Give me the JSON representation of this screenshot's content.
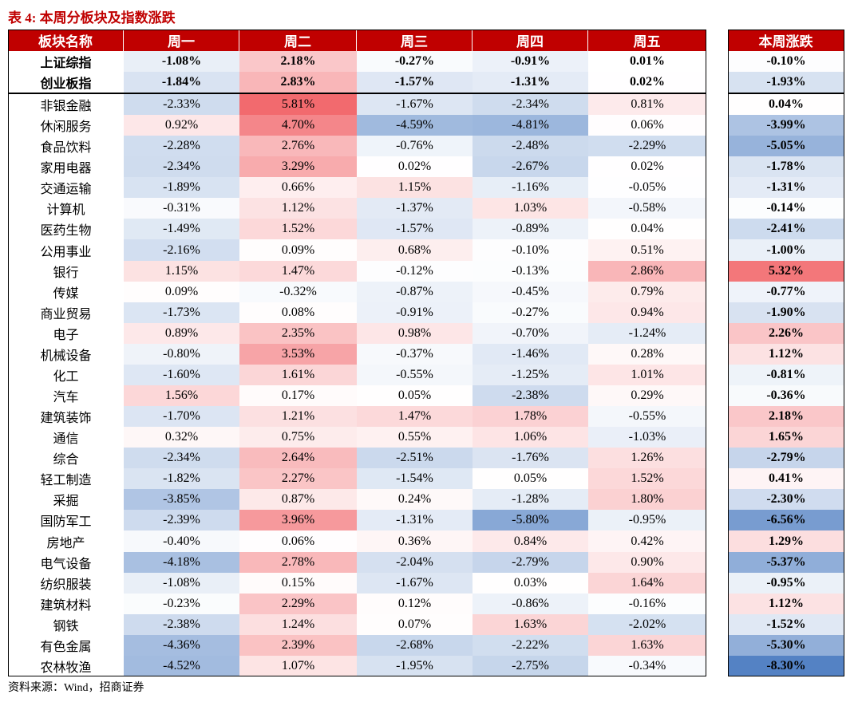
{
  "header": {
    "title": "表 4: 本周分板块及指数涨跌"
  },
  "table": {
    "columns": [
      "板块名称",
      "周一",
      "周二",
      "周三",
      "周四",
      "周五",
      "本周涨跌"
    ],
    "index_rows": [
      [
        "上证综指",
        "-1.08%",
        "2.18%",
        "-0.27%",
        "-0.91%",
        "0.01%",
        "-0.10%"
      ],
      [
        "创业板指",
        "-1.84%",
        "2.83%",
        "-1.57%",
        "-1.31%",
        "0.02%",
        "-1.93%"
      ]
    ],
    "rows": [
      [
        "非银金融",
        "-2.33%",
        "5.81%",
        "-1.67%",
        "-2.34%",
        "0.81%",
        "0.04%"
      ],
      [
        "休闲服务",
        "0.92%",
        "4.70%",
        "-4.59%",
        "-4.81%",
        "0.06%",
        "-3.99%"
      ],
      [
        "食品饮料",
        "-2.28%",
        "2.76%",
        "-0.76%",
        "-2.48%",
        "-2.29%",
        "-5.05%"
      ],
      [
        "家用电器",
        "-2.34%",
        "3.29%",
        "0.02%",
        "-2.67%",
        "0.02%",
        "-1.78%"
      ],
      [
        "交通运输",
        "-1.89%",
        "0.66%",
        "1.15%",
        "-1.16%",
        "-0.05%",
        "-1.31%"
      ],
      [
        "计算机",
        "-0.31%",
        "1.12%",
        "-1.37%",
        "1.03%",
        "-0.58%",
        "-0.14%"
      ],
      [
        "医药生物",
        "-1.49%",
        "1.52%",
        "-1.57%",
        "-0.89%",
        "0.04%",
        "-2.41%"
      ],
      [
        "公用事业",
        "-2.16%",
        "0.09%",
        "0.68%",
        "-0.10%",
        "0.51%",
        "-1.00%"
      ],
      [
        "银行",
        "1.15%",
        "1.47%",
        "-0.12%",
        "-0.13%",
        "2.86%",
        "5.32%"
      ],
      [
        "传媒",
        "0.09%",
        "-0.32%",
        "-0.87%",
        "-0.45%",
        "0.79%",
        "-0.77%"
      ],
      [
        "商业贸易",
        "-1.73%",
        "0.08%",
        "-0.91%",
        "-0.27%",
        "0.94%",
        "-1.90%"
      ],
      [
        "电子",
        "0.89%",
        "2.35%",
        "0.98%",
        "-0.70%",
        "-1.24%",
        "2.26%"
      ],
      [
        "机械设备",
        "-0.80%",
        "3.53%",
        "-0.37%",
        "-1.46%",
        "0.28%",
        "1.12%"
      ],
      [
        "化工",
        "-1.60%",
        "1.61%",
        "-0.55%",
        "-1.25%",
        "1.01%",
        "-0.81%"
      ],
      [
        "汽车",
        "1.56%",
        "0.17%",
        "0.05%",
        "-2.38%",
        "0.29%",
        "-0.36%"
      ],
      [
        "建筑装饰",
        "-1.70%",
        "1.21%",
        "1.47%",
        "1.78%",
        "-0.55%",
        "2.18%"
      ],
      [
        "通信",
        "0.32%",
        "0.75%",
        "0.55%",
        "1.06%",
        "-1.03%",
        "1.65%"
      ],
      [
        "综合",
        "-2.34%",
        "2.64%",
        "-2.51%",
        "-1.76%",
        "1.26%",
        "-2.79%"
      ],
      [
        "轻工制造",
        "-1.82%",
        "2.27%",
        "-1.54%",
        "0.05%",
        "1.52%",
        "0.41%"
      ],
      [
        "采掘",
        "-3.85%",
        "0.87%",
        "0.24%",
        "-1.28%",
        "1.80%",
        "-2.30%"
      ],
      [
        "国防军工",
        "-2.39%",
        "3.96%",
        "-1.31%",
        "-5.80%",
        "-0.95%",
        "-6.56%"
      ],
      [
        "房地产",
        "-0.40%",
        "0.06%",
        "0.36%",
        "0.84%",
        "0.42%",
        "1.29%"
      ],
      [
        "电气设备",
        "-4.18%",
        "2.78%",
        "-2.04%",
        "-2.79%",
        "0.90%",
        "-5.37%"
      ],
      [
        "纺织服装",
        "-1.08%",
        "0.15%",
        "-1.67%",
        "0.03%",
        "1.64%",
        "-0.95%"
      ],
      [
        "建筑材料",
        "-0.23%",
        "2.29%",
        "0.12%",
        "-0.86%",
        "-0.16%",
        "1.12%"
      ],
      [
        "钢铁",
        "-2.38%",
        "1.24%",
        "0.07%",
        "1.63%",
        "-2.02%",
        "-1.52%"
      ],
      [
        "有色金属",
        "-4.36%",
        "2.39%",
        "-2.68%",
        "-2.22%",
        "1.63%",
        "-5.30%"
      ],
      [
        "农林牧渔",
        "-4.52%",
        "1.07%",
        "-1.95%",
        "-2.75%",
        "-0.34%",
        "-8.30%"
      ]
    ]
  },
  "footer": {
    "source": "资料来源：Wind，招商证券"
  }
}
